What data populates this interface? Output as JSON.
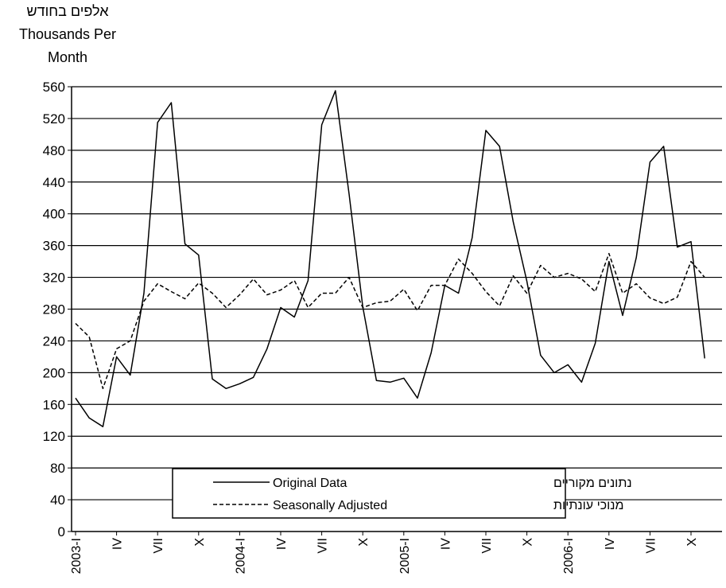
{
  "chart_data": {
    "type": "line",
    "ylabel_he": "אלפים בחודש",
    "ylabel_en_line1": "Thousands Per",
    "ylabel_en_line2": "Month",
    "ylim": [
      0,
      560
    ],
    "y_ticks": [
      "0",
      "40",
      "80",
      "120",
      "160",
      "200",
      "240",
      "280",
      "320",
      "360",
      "400",
      "440",
      "480",
      "520",
      "560"
    ],
    "x_tick_labels": [
      "2003-I",
      "IV",
      "VII",
      "X",
      "2004-I",
      "IV",
      "VII",
      "X",
      "2005-I",
      "IV",
      "VII",
      "X",
      "2006-I",
      "IV",
      "VII",
      "X"
    ],
    "grid": true,
    "legend_position": "bottom-center",
    "series": [
      {
        "name": "Original Data",
        "name_he": "נתונים מקוריים",
        "style": "solid",
        "values": [
          168,
          143,
          132,
          220,
          197,
          300,
          515,
          540,
          362,
          348,
          192,
          180,
          186,
          194,
          230,
          282,
          270,
          316,
          512,
          555,
          425,
          283,
          190,
          188,
          193,
          168,
          225,
          310,
          300,
          370,
          505,
          485,
          390,
          315,
          222,
          200,
          210,
          188,
          237,
          340,
          272,
          345,
          465,
          485,
          358,
          365,
          218
        ]
      },
      {
        "name": "Seasonally Adjusted",
        "name_he": "מנוכי עונתיות",
        "style": "dashed",
        "values": [
          262,
          245,
          180,
          230,
          240,
          290,
          312,
          302,
          293,
          313,
          300,
          282,
          298,
          318,
          298,
          304,
          316,
          282,
          300,
          300,
          320,
          282,
          288,
          290,
          305,
          278,
          310,
          310,
          343,
          325,
          302,
          284,
          322,
          300,
          335,
          320,
          325,
          318,
          302,
          350,
          300,
          312,
          294,
          287,
          295,
          340,
          320
        ]
      }
    ]
  }
}
